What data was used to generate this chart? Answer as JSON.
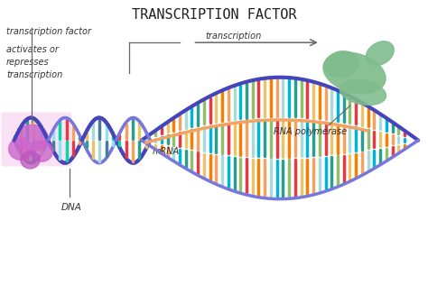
{
  "title": "TRANSCRIPTION FACTOR",
  "title_fontsize": 11,
  "bg_color": "#ffffff",
  "labels": {
    "transcription_factor": "transcription factor",
    "activates": "activates or\nrepresses\ntranscription",
    "transcription_arrow": "transcription",
    "mrna": "mRNA",
    "rna_pol": "RNA polymerase",
    "dna": "DNA"
  },
  "strand1_color": "#4444bb",
  "strand2_color": "#7777dd",
  "helix_colors_left": [
    "#e63946",
    "#f4a261",
    "#2a9d8f",
    "#e9c46a",
    "#a8dadc",
    "#457b9d",
    "#90e0ef",
    "#06d6a0"
  ],
  "helix_colors_bubble": [
    "#e63946",
    "#f4a261",
    "#2a9d8f",
    "#e9c46a",
    "#a8dadc",
    "#90be6d",
    "#f77f00",
    "#00b4d8"
  ],
  "rna_pol_color": "#7fbc8c",
  "rna_pol_color2": "#5a9e68",
  "mrna_color": "#f4a261",
  "tf_color": "#cc66cc",
  "tf_color2": "#bb55bb",
  "annotation_color": "#333333",
  "arrow_color": "#666666",
  "pink_bg": "#f8d0f0"
}
